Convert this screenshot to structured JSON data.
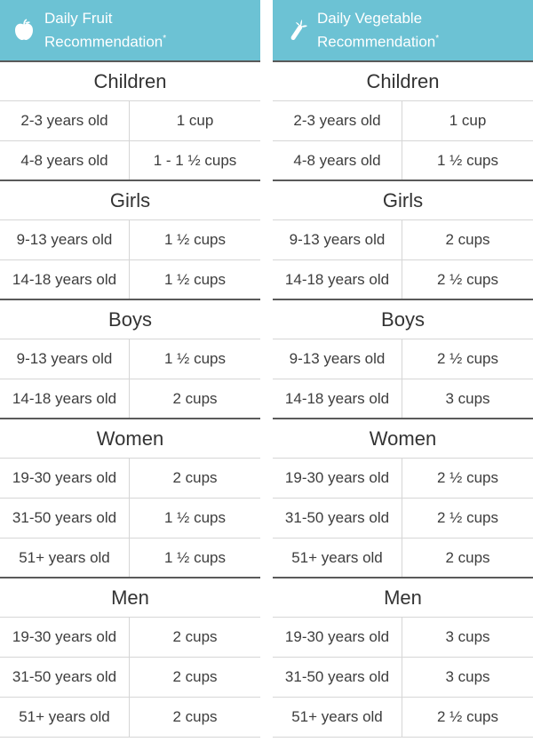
{
  "fruit": {
    "title_line1": "Daily Fruit",
    "title_line2": "Recommendation",
    "asterisk": "*",
    "icon": "apple-icon",
    "groups": [
      {
        "name": "Children",
        "rows": [
          [
            "2-3 years old",
            "1 cup"
          ],
          [
            "4-8 years old",
            "1 - 1 ½ cups"
          ]
        ]
      },
      {
        "name": "Girls",
        "rows": [
          [
            "9-13 years old",
            "1 ½ cups"
          ],
          [
            "14-18 years old",
            "1 ½ cups"
          ]
        ]
      },
      {
        "name": "Boys",
        "rows": [
          [
            "9-13 years old",
            "1 ½ cups"
          ],
          [
            "14-18 years old",
            "2 cups"
          ]
        ]
      },
      {
        "name": "Women",
        "rows": [
          [
            "19-30 years old",
            "2 cups"
          ],
          [
            "31-50 years old",
            "1 ½ cups"
          ],
          [
            "51+ years old",
            "1 ½ cups"
          ]
        ]
      },
      {
        "name": "Men",
        "rows": [
          [
            "19-30 years old",
            "2 cups"
          ],
          [
            "31-50 years old",
            "2 cups"
          ],
          [
            "51+ years old",
            "2 cups"
          ]
        ]
      }
    ]
  },
  "vegetable": {
    "title_line1": "Daily Vegetable",
    "title_line2": "Recommendation",
    "asterisk": "*",
    "icon": "carrot-icon",
    "groups": [
      {
        "name": "Children",
        "rows": [
          [
            "2-3 years old",
            "1 cup"
          ],
          [
            "4-8 years old",
            "1 ½ cups"
          ]
        ]
      },
      {
        "name": "Girls",
        "rows": [
          [
            "9-13 years old",
            "2 cups"
          ],
          [
            "14-18 years old",
            "2 ½ cups"
          ]
        ]
      },
      {
        "name": "Boys",
        "rows": [
          [
            "9-13 years old",
            "2 ½ cups"
          ],
          [
            "14-18 years old",
            "3 cups"
          ]
        ]
      },
      {
        "name": "Women",
        "rows": [
          [
            "19-30 years old",
            "2 ½ cups"
          ],
          [
            "31-50 years old",
            "2 ½ cups"
          ],
          [
            "51+ years old",
            "2 cups"
          ]
        ]
      },
      {
        "name": "Men",
        "rows": [
          [
            "19-30 years old",
            "3 cups"
          ],
          [
            "31-50 years old",
            "3 cups"
          ],
          [
            "51+ years old",
            "2 ½ cups"
          ]
        ]
      }
    ]
  },
  "colors": {
    "header_bg": "#6cc2d4",
    "header_text": "#ffffff"
  }
}
